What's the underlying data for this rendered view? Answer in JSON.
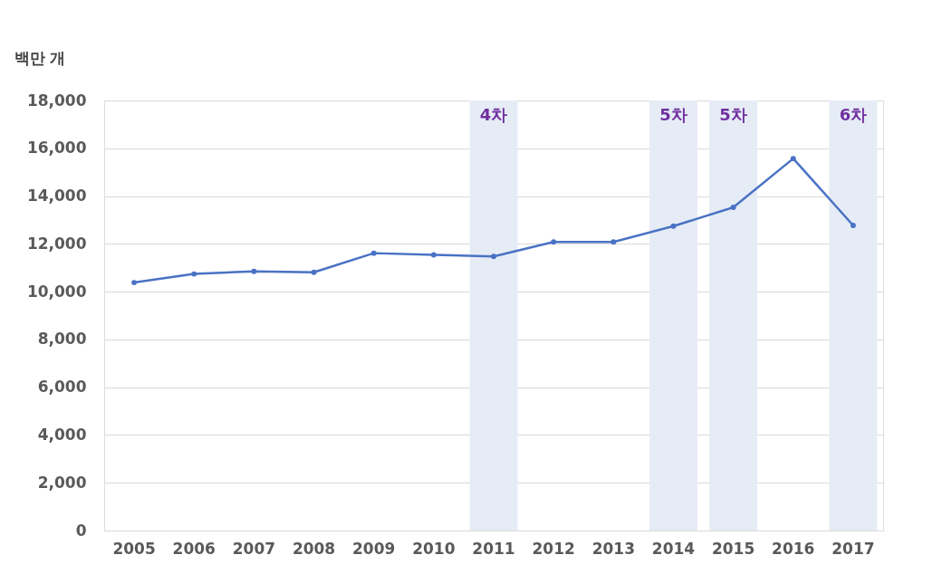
{
  "chart_data": {
    "type": "line",
    "ylabel": "백만 개",
    "categories": [
      "2005",
      "2006",
      "2007",
      "2008",
      "2009",
      "2010",
      "2011",
      "2012",
      "2013",
      "2014",
      "2015",
      "2016",
      "2017"
    ],
    "series": [
      {
        "color": "#4a72c4",
        "values": [
          10380,
          10740,
          10850,
          10810,
          11610,
          11540,
          11470,
          12080,
          12080,
          12740,
          13530,
          15570,
          12770
        ]
      }
    ],
    "ylim": [
      0,
      18000
    ],
    "yticks": [
      0,
      {
        "value": 2000,
        "label": "2,000"
      },
      {
        "value": 4000,
        "label": "4,000"
      },
      {
        "value": 6000,
        "label": "6,000"
      },
      {
        "value": 8000,
        "label": "8,000"
      },
      {
        "value": 10000,
        "label": "10,000"
      },
      {
        "value": 12000,
        "label": "12,000"
      },
      {
        "value": 14000,
        "label": "14,000"
      },
      {
        "value": 16000,
        "label": "16,000"
      },
      {
        "value": 18000,
        "label": "18,000"
      }
    ],
    "bands": [
      {
        "axis": "x",
        "from": "2011",
        "to": "2011",
        "label": "4차",
        "color": "#e6ecf6"
      },
      {
        "axis": "x",
        "from": "2014",
        "to": "2014",
        "label": "5차",
        "color": "#e6ecf6"
      },
      {
        "axis": "x",
        "from": "2015",
        "to": "2015",
        "label": "5차",
        "color": "#e6ecf6"
      },
      {
        "axis": "x",
        "from": "2017",
        "to": "2017",
        "label": "6차",
        "color": "#e6ecf6"
      }
    ],
    "grid": "y",
    "marker": "circle",
    "line_style": "solid"
  }
}
